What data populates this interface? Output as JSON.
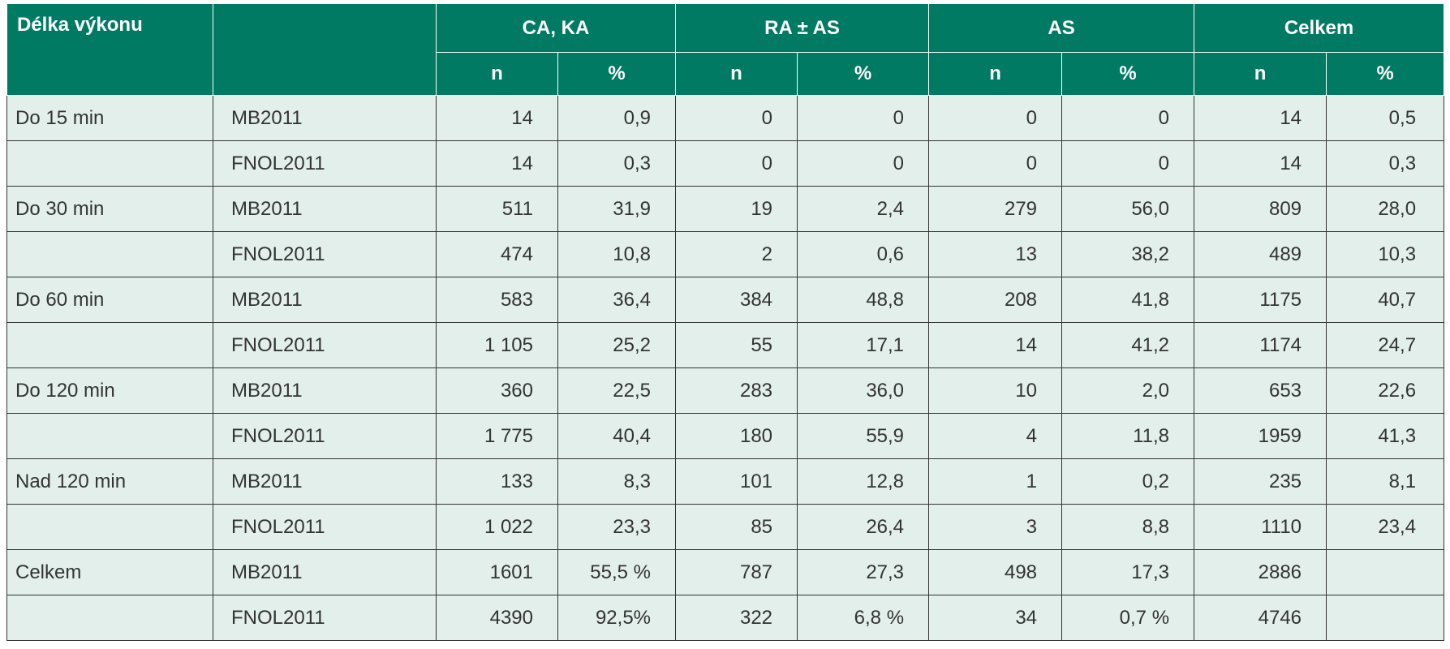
{
  "header": {
    "col_label": "Délka výkonu",
    "groups": [
      "CA, KA",
      "RA ± AS",
      "AS",
      "Celkem"
    ],
    "n": "n",
    "pct": "%"
  },
  "rows": [
    {
      "label": "Do 15 min",
      "source": "MB2011",
      "cells": [
        "14",
        "0,9",
        "0",
        "0",
        "0",
        "0",
        "14",
        "0,5"
      ]
    },
    {
      "label": "",
      "source": "FNOL2011",
      "cells": [
        "14",
        "0,3",
        "0",
        "0",
        "0",
        "0",
        "14",
        "0,3"
      ]
    },
    {
      "label": "Do 30 min",
      "source": "MB2011",
      "cells": [
        "511",
        "31,9",
        "19",
        "2,4",
        "279",
        "56,0",
        "809",
        "28,0"
      ]
    },
    {
      "label": "",
      "source": "FNOL2011",
      "cells": [
        "474",
        "10,8",
        "2",
        "0,6",
        "13",
        "38,2",
        "489",
        "10,3"
      ]
    },
    {
      "label": "Do 60 min",
      "source": "MB2011",
      "cells": [
        "583",
        "36,4",
        "384",
        "48,8",
        "208",
        "41,8",
        "1175",
        "40,7"
      ]
    },
    {
      "label": "",
      "source": "FNOL2011",
      "cells": [
        "1 105",
        "25,2",
        "55",
        "17,1",
        "14",
        "41,2",
        "1174",
        "24,7"
      ]
    },
    {
      "label": "Do 120 min",
      "source": "MB2011",
      "cells": [
        "360",
        "22,5",
        "283",
        "36,0",
        "10",
        "2,0",
        "653",
        "22,6"
      ]
    },
    {
      "label": "",
      "source": "FNOL2011",
      "cells": [
        "1 775",
        "40,4",
        "180",
        "55,9",
        "4",
        "11,8",
        "1959",
        "41,3"
      ]
    },
    {
      "label": "Nad 120 min",
      "source": "MB2011",
      "cells": [
        "133",
        "8,3",
        "101",
        "12,8",
        "1",
        "0,2",
        "235",
        "8,1"
      ]
    },
    {
      "label": "",
      "source": "FNOL2011",
      "cells": [
        "1 022",
        "23,3",
        "85",
        "26,4",
        "3",
        "8,8",
        "1110",
        "23,4"
      ]
    },
    {
      "label": "Celkem",
      "source": "MB2011",
      "cells": [
        "1601",
        "55,5 %",
        "787",
        "27,3",
        "498",
        "17,3",
        "2886",
        ""
      ]
    },
    {
      "label": "",
      "source": "FNOL2011",
      "cells": [
        "4390",
        "92,5%",
        "322",
        "6,8 %",
        "34",
        "0,7 %",
        "4746",
        ""
      ]
    }
  ]
}
